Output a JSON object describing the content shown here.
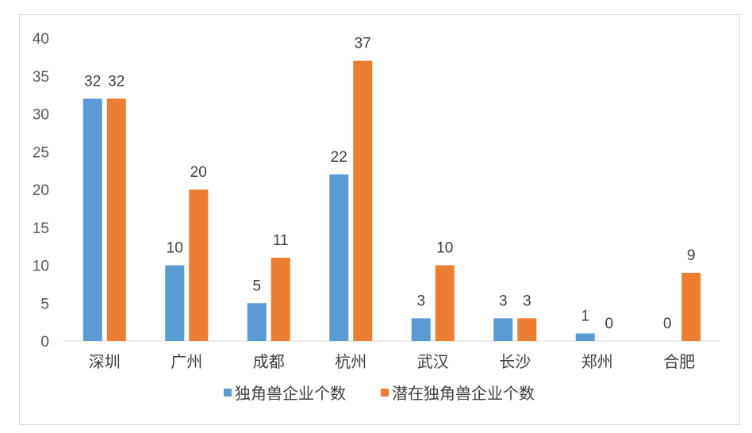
{
  "chart_data": {
    "type": "bar",
    "categories": [
      "深圳",
      "广州",
      "成都",
      "杭州",
      "武汉",
      "长沙",
      "郑州",
      "合肥"
    ],
    "series": [
      {
        "name": "独角兽企业个数",
        "values": [
          32,
          10,
          5,
          22,
          3,
          3,
          1,
          0
        ],
        "color": "#5b9bd5"
      },
      {
        "name": "潜在独角兽企业个数",
        "values": [
          32,
          20,
          11,
          37,
          10,
          3,
          0,
          9
        ],
        "color": "#ed7d31"
      }
    ],
    "ylim": [
      0,
      40
    ],
    "yticks": [
      0,
      5,
      10,
      15,
      20,
      25,
      30,
      35,
      40
    ],
    "grid": false,
    "legend_position": "bottom",
    "data_labels": true
  }
}
